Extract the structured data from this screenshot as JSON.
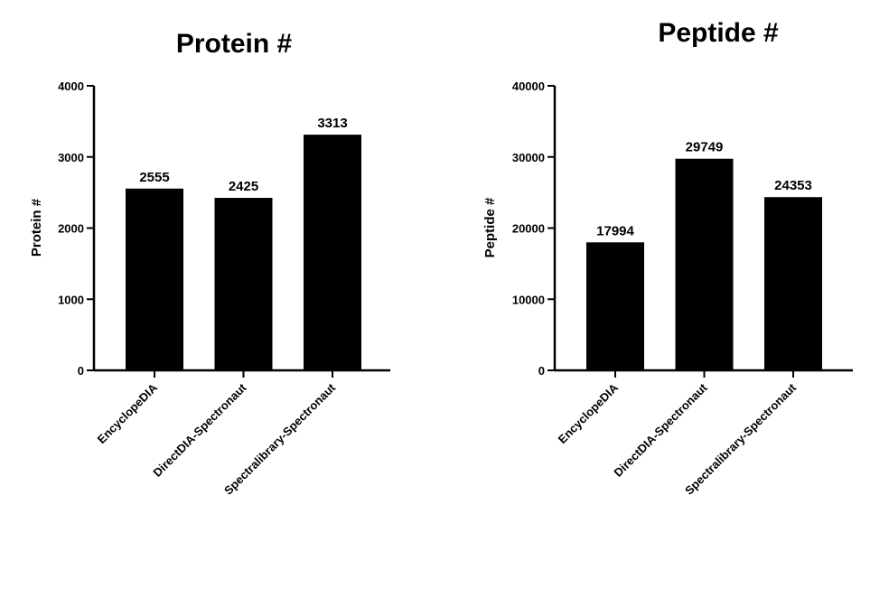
{
  "chart_data": [
    {
      "type": "bar",
      "title": "Protein #",
      "xlabel": "",
      "ylabel": "Protein #",
      "ylim": [
        0,
        4000
      ],
      "yticks": [
        0,
        1000,
        2000,
        3000,
        4000
      ],
      "categories": [
        "EncyclopeDIA",
        "DirectDIA-Spectronaut",
        "Spectralibrary-Spectronaut"
      ],
      "values": [
        2555,
        2425,
        3313
      ],
      "data_labels": [
        "2555",
        "2425",
        "3313"
      ],
      "bar_color": "#000000",
      "grid": false,
      "legend": "none"
    },
    {
      "type": "bar",
      "title": "Peptide #",
      "xlabel": "",
      "ylabel": "Peptide #",
      "ylim": [
        0,
        40000
      ],
      "yticks": [
        0,
        10000,
        20000,
        30000,
        40000
      ],
      "categories": [
        "EncyclopeDIA",
        "DirectDIA-Spectronaut",
        "Spectralibrary-Spectronaut"
      ],
      "values": [
        17994,
        29749,
        24353
      ],
      "data_labels": [
        "17994",
        "29749",
        "24353"
      ],
      "bar_color": "#000000",
      "grid": false,
      "legend": "none"
    }
  ]
}
